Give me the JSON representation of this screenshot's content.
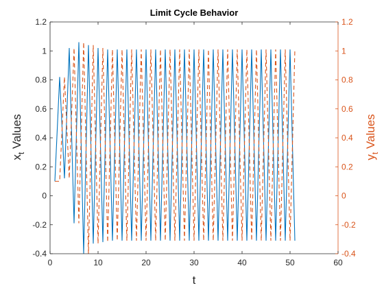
{
  "chart_data": {
    "type": "line",
    "title": "Limit Cycle Behavior",
    "xlabel": "t",
    "ylabel_left": "x",
    "ylabel_left_sub": "t",
    "ylabel_left_rest": " Values",
    "ylabel_right": "y",
    "ylabel_right_sub": "t",
    "ylabel_right_rest": " Values",
    "xlim": [
      0,
      60
    ],
    "ylim": [
      -0.4,
      1.2
    ],
    "xticks": [
      "0",
      "10",
      "20",
      "30",
      "40",
      "50",
      "60"
    ],
    "yticks": [
      "-0.4",
      "-0.2",
      "0",
      "0.2",
      "0.4",
      "0.6",
      "0.8",
      "1",
      "1.2"
    ],
    "grid": false,
    "series": [
      {
        "color": "#0072BD",
        "axis": "left",
        "style": "solid",
        "x": [
          1,
          2,
          3,
          4,
          5,
          6,
          7,
          8,
          9,
          10,
          11,
          12,
          13,
          14,
          15,
          16,
          17,
          18,
          19,
          20,
          21,
          22,
          23,
          24,
          25,
          26,
          27,
          28,
          29,
          30,
          31,
          32,
          33,
          34,
          35,
          36,
          37,
          38,
          39,
          40,
          41,
          42,
          43,
          44,
          45,
          46,
          47,
          48,
          49,
          50,
          51
        ],
        "values": [
          0.1,
          0.82,
          0.12,
          1.02,
          -0.19,
          1.06,
          -0.4,
          1.04,
          -0.33,
          1.02,
          -0.32,
          1.01,
          -0.31,
          1.01,
          -0.31,
          1.01,
          -0.31,
          1.01,
          -0.31,
          1.01,
          -0.31,
          1.01,
          -0.31,
          1.01,
          -0.31,
          1.01,
          -0.31,
          1.01,
          -0.31,
          1.01,
          -0.31,
          1.01,
          -0.31,
          1.01,
          -0.31,
          1.01,
          -0.31,
          1.01,
          -0.31,
          1.01,
          -0.31,
          1.01,
          -0.31,
          1.01,
          -0.31,
          1.01,
          -0.31,
          1.01,
          -0.31,
          1.01,
          -0.31
        ]
      },
      {
        "color": "#D95319",
        "axis": "right",
        "style": "dashed",
        "x": [
          1,
          2,
          3,
          4,
          5,
          6,
          7,
          8,
          9,
          10,
          11,
          12,
          13,
          14,
          15,
          16,
          17,
          18,
          19,
          20,
          21,
          22,
          23,
          24,
          25,
          26,
          27,
          28,
          29,
          30,
          31,
          32,
          33,
          34,
          35,
          36,
          37,
          38,
          39,
          40,
          41,
          42,
          43,
          44,
          45,
          46,
          47,
          48,
          49,
          50,
          51
        ],
        "values": [
          0.1,
          0.1,
          0.82,
          0.12,
          1.02,
          -0.19,
          1.06,
          -0.4,
          1.04,
          -0.33,
          1.02,
          -0.32,
          1.01,
          -0.31,
          1.01,
          -0.31,
          1.01,
          -0.31,
          1.01,
          -0.31,
          1.01,
          -0.31,
          1.01,
          -0.31,
          1.01,
          -0.31,
          1.01,
          -0.31,
          1.01,
          -0.31,
          1.01,
          -0.31,
          1.01,
          -0.31,
          1.01,
          -0.31,
          1.01,
          -0.31,
          1.01,
          -0.31,
          1.01,
          -0.31,
          1.01,
          -0.31,
          1.01,
          -0.31,
          1.01,
          -0.31,
          1.01,
          -0.31,
          1.01
        ]
      }
    ],
    "colors": {
      "left_axis": "#262626",
      "right_axis": "#D95319"
    }
  }
}
